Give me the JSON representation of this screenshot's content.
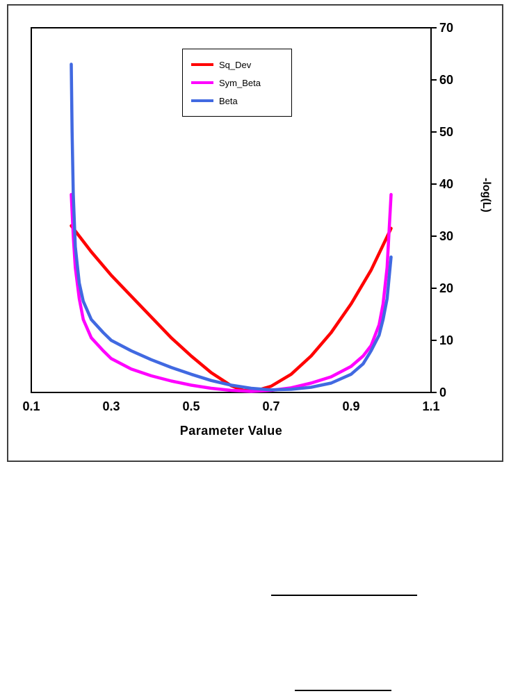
{
  "figure": {
    "x_axis": {
      "title": "Parameter Value",
      "ticks": [
        "0.1",
        "0.3",
        "0.5",
        "0.7",
        "0.9",
        "1.1"
      ]
    },
    "y_axis": {
      "title": "-log(L)",
      "ticks": [
        "0",
        "10",
        "20",
        "30",
        "40",
        "50",
        "60",
        "70"
      ],
      "tick_values": [
        0,
        10,
        20,
        30,
        40,
        50,
        60,
        70
      ],
      "position": "right"
    }
  },
  "chart_data": {
    "type": "line",
    "title": "",
    "xlabel": "Parameter Value",
    "ylabel": "-log(L)",
    "xlim": [
      0.1,
      1.1
    ],
    "ylim": [
      0,
      70
    ],
    "grid": false,
    "legend_position": "top-center-inside",
    "series": [
      {
        "name": "Sq_Dev",
        "color": "#ff0000",
        "points": [
          [
            0.2,
            32
          ],
          [
            0.25,
            27
          ],
          [
            0.3,
            22.5
          ],
          [
            0.35,
            18.5
          ],
          [
            0.4,
            14.5
          ],
          [
            0.45,
            10.5
          ],
          [
            0.5,
            7
          ],
          [
            0.55,
            3.8
          ],
          [
            0.6,
            1.3
          ],
          [
            0.63,
            0.4
          ],
          [
            0.66,
            0.3
          ],
          [
            0.7,
            1.2
          ],
          [
            0.75,
            3.5
          ],
          [
            0.8,
            7
          ],
          [
            0.85,
            11.5
          ],
          [
            0.9,
            17
          ],
          [
            0.95,
            23.5
          ],
          [
            1.0,
            31.5
          ]
        ]
      },
      {
        "name": "Sym_Beta",
        "color": "#ff00ff",
        "points": [
          [
            0.2,
            38
          ],
          [
            0.205,
            30
          ],
          [
            0.21,
            24
          ],
          [
            0.22,
            18
          ],
          [
            0.23,
            14
          ],
          [
            0.25,
            10.5
          ],
          [
            0.28,
            8
          ],
          [
            0.3,
            6.5
          ],
          [
            0.35,
            4.5
          ],
          [
            0.4,
            3.2
          ],
          [
            0.45,
            2.2
          ],
          [
            0.5,
            1.4
          ],
          [
            0.55,
            0.8
          ],
          [
            0.6,
            0.4
          ],
          [
            0.65,
            0.2
          ],
          [
            0.7,
            0.4
          ],
          [
            0.75,
            0.9
          ],
          [
            0.8,
            1.8
          ],
          [
            0.85,
            3
          ],
          [
            0.9,
            5
          ],
          [
            0.93,
            7
          ],
          [
            0.95,
            9
          ],
          [
            0.97,
            13
          ],
          [
            0.98,
            17
          ],
          [
            0.99,
            24
          ],
          [
            1.0,
            38
          ]
        ]
      },
      {
        "name": "Beta",
        "color": "#4169e1",
        "points": [
          [
            0.2,
            63
          ],
          [
            0.202,
            50
          ],
          [
            0.205,
            38
          ],
          [
            0.21,
            28
          ],
          [
            0.22,
            21
          ],
          [
            0.23,
            17.5
          ],
          [
            0.25,
            14
          ],
          [
            0.28,
            11.5
          ],
          [
            0.3,
            10
          ],
          [
            0.35,
            8
          ],
          [
            0.4,
            6.3
          ],
          [
            0.45,
            4.8
          ],
          [
            0.5,
            3.5
          ],
          [
            0.55,
            2.3
          ],
          [
            0.6,
            1.4
          ],
          [
            0.65,
            0.8
          ],
          [
            0.7,
            0.5
          ],
          [
            0.75,
            0.6
          ],
          [
            0.8,
            1
          ],
          [
            0.85,
            1.8
          ],
          [
            0.9,
            3.5
          ],
          [
            0.93,
            5.5
          ],
          [
            0.95,
            8
          ],
          [
            0.97,
            11
          ],
          [
            0.98,
            14
          ],
          [
            0.99,
            18
          ],
          [
            1.0,
            26
          ]
        ]
      }
    ]
  }
}
